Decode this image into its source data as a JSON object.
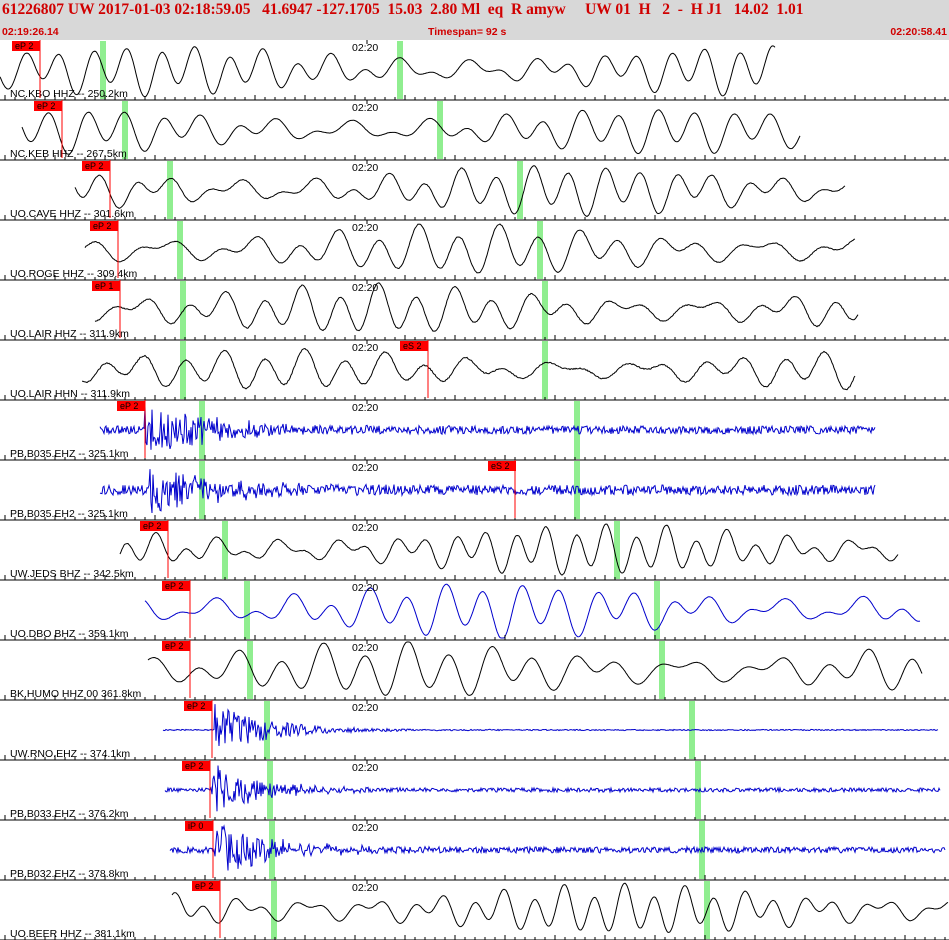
{
  "header": {
    "title": "61226807 UW 2017-01-03 02:18:59.05   41.6947 -127.1705  15.03  2.80 Ml  eq  R amyw     UW 01  H   2  -  H J1   14.02  1.01",
    "start_time": "02:19:26.14",
    "timespan": "Timespan=  92 s",
    "end_time": "02:20:58.41"
  },
  "colors": {
    "trace_black": "#000000",
    "trace_blue": "#0000cc",
    "pick": "#ff0000",
    "window": "#90ee90",
    "header_bg": "#d8d8d8"
  },
  "time_mark_label": "02:20",
  "traces": [
    {
      "label": "NC.KBO HHZ -- 250.2km",
      "color": "black",
      "pick": "eP 2"
    },
    {
      "label": "NC.KEB HHZ -- 267.5km",
      "color": "black",
      "pick": "eP 2"
    },
    {
      "label": "UO.CAVE HHZ -- 301.6km",
      "color": "black",
      "pick": "eP 2"
    },
    {
      "label": "UO.ROGE HHZ -- 309.4km",
      "color": "black",
      "pick": "eP 2"
    },
    {
      "label": "UO.LAIR HHZ -- 311.9km",
      "color": "black",
      "pick": "eP 1"
    },
    {
      "label": "UO.LAIR HHN -- 311.9km",
      "color": "black",
      "pick": "eS 2"
    },
    {
      "label": "PB.B035.EHZ -- 325.1km",
      "color": "blue",
      "pick": "eP 2"
    },
    {
      "label": "PB.B035.EH2 -- 325.1km",
      "color": "blue",
      "pick": "eS 2"
    },
    {
      "label": "UW.JEDS BHZ -- 342.5km",
      "color": "black",
      "pick": "eP 2"
    },
    {
      "label": "UO.DBO BHZ -- 359.1km",
      "color": "blue",
      "pick": "eP 2"
    },
    {
      "label": "BK.HUMO HHZ 00 361.8km",
      "color": "black",
      "pick": "eP 2"
    },
    {
      "label": "UW.RNO.EHZ -- 374.1km",
      "color": "blue",
      "pick": "eP 2"
    },
    {
      "label": "PB.B033.EHZ -- 376.2km",
      "color": "blue",
      "pick": "eP 2"
    },
    {
      "label": "PB.B032.EHZ -- 378.8km",
      "color": "blue",
      "pick": "iP 0"
    },
    {
      "label": "UO.BEER HHZ -- 381.1km",
      "color": "black",
      "pick": "eP 2"
    }
  ]
}
